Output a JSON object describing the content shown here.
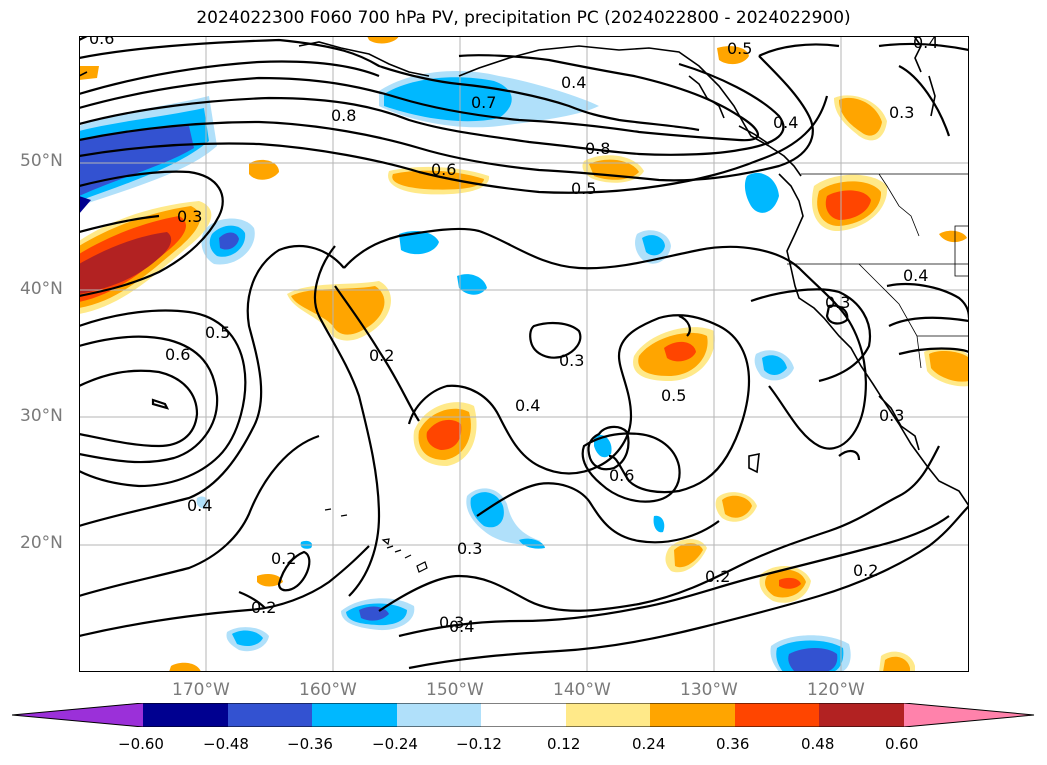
{
  "title": "2024022300 F060 700 hPa PV, precipitation PC (2024022800 - 2024022900)",
  "map": {
    "projection": "plate carree",
    "lon_range": [
      -180,
      -110
    ],
    "lat_range": [
      10,
      60
    ],
    "gridlines": true,
    "lat_ticks": [
      "20°N",
      "30°N",
      "40°N",
      "50°N"
    ],
    "lon_ticks": [
      "170°W",
      "160°W",
      "150°W",
      "140°W",
      "130°W",
      "120°W"
    ],
    "pv_contour_levels": [
      0.2,
      0.3,
      0.4,
      0.5,
      0.6,
      0.7,
      0.8
    ],
    "contour_labels": [
      "0.6",
      "0.4",
      "0.5",
      "0.7",
      "0.4",
      "0.8",
      "0.8",
      "0.4",
      "0.3",
      "0.6",
      "0.5",
      "0.3",
      "0.4",
      "0.3",
      "0.5",
      "0.6",
      "0.2",
      "0.3",
      "0.4",
      "0.5",
      "0.3",
      "0.3",
      "0.4",
      "0.6",
      "0.2",
      "0.3",
      "0.2",
      "0.2",
      "0.4",
      "0.2"
    ]
  },
  "colorbar": {
    "colors": [
      "#9b30d9",
      "#000090",
      "#3352d1",
      "#00b8ff",
      "#b0e0fa",
      "#ffffff",
      "#ffe989",
      "#ffa500",
      "#ff4500",
      "#b22222",
      "#ff82ab"
    ],
    "ticks": [
      "−0.60",
      "−0.48",
      "−0.36",
      "−0.24",
      "−0.12",
      "0.12",
      "0.24",
      "0.36",
      "0.48",
      "0.60"
    ],
    "extend": "both"
  }
}
